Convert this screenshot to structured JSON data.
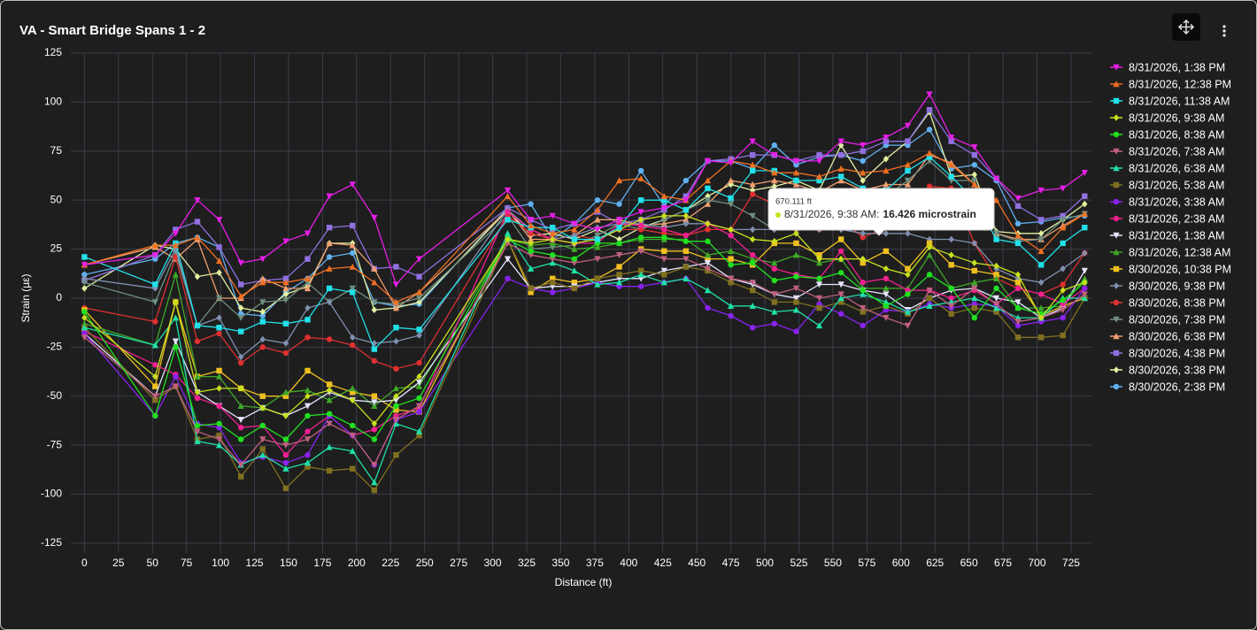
{
  "chart_data": {
    "type": "line",
    "title": "VA - Smart Bridge Spans 1 - 2",
    "xlabel": "Distance (ft)",
    "ylabel": "Strain (µε)",
    "xlim": [
      -10,
      740
    ],
    "ylim": [
      -130,
      125
    ],
    "xticks": [
      0,
      25,
      50,
      75,
      100,
      125,
      150,
      175,
      200,
      225,
      250,
      275,
      300,
      325,
      350,
      375,
      400,
      425,
      450,
      475,
      500,
      525,
      550,
      575,
      600,
      625,
      650,
      675,
      700,
      725
    ],
    "yticks": [
      -125,
      -100,
      -75,
      -50,
      -25,
      0,
      25,
      50,
      75,
      100,
      125
    ],
    "grid": true,
    "legend": "right",
    "x": [
      0,
      52,
      67,
      83,
      99,
      115,
      131,
      148,
      164,
      180,
      197,
      213,
      229,
      246,
      311,
      328,
      344,
      360,
      377,
      393,
      409,
      426,
      442,
      458,
      475,
      491,
      507,
      523,
      540,
      556,
      572,
      589,
      605,
      621,
      637,
      654,
      670.111,
      686,
      703,
      719,
      735
    ],
    "series": [
      {
        "name": "8/31/2026, 1:38 PM",
        "color": "#e81ee8",
        "marker": "triangle-down",
        "values": [
          17,
          22,
          33,
          50,
          40,
          18,
          20,
          29,
          33,
          52,
          58,
          41,
          7,
          20,
          55,
          40,
          42,
          38,
          35,
          40,
          44,
          46,
          50,
          70,
          69,
          80,
          73,
          70,
          70,
          80,
          78,
          82,
          88,
          104,
          82,
          77,
          61,
          51,
          55,
          56,
          64
        ]
      },
      {
        "name": "8/31/2026, 12:38 PM",
        "color": "#f07020",
        "marker": "triangle",
        "values": [
          17,
          27,
          27,
          31,
          19,
          1,
          8,
          8,
          10,
          15,
          16,
          8,
          -2,
          3,
          52,
          37,
          33,
          35,
          45,
          60,
          61,
          52,
          50,
          60,
          70,
          68,
          64,
          64,
          62,
          66,
          64,
          65,
          68,
          74,
          68,
          58,
          50,
          32,
          24,
          36,
          43
        ]
      },
      {
        "name": "8/31/2026, 11:38 AM",
        "color": "#22e0e8",
        "marker": "square",
        "values": [
          21,
          7,
          28,
          -14,
          -15,
          -17,
          -12,
          -13,
          -11,
          5,
          3,
          -26,
          -15,
          -16,
          40,
          36,
          36,
          30,
          30,
          36,
          50,
          50,
          45,
          56,
          51,
          65,
          65,
          60,
          60,
          62,
          56,
          55,
          65,
          72,
          62,
          50,
          30,
          28,
          17,
          28,
          36
        ]
      },
      {
        "name": "8/31/2026, 9:38 AM",
        "color": "#c8e01e",
        "marker": "diamond",
        "values": [
          -10,
          -40,
          -2,
          -48,
          -46,
          -46,
          -56,
          -60,
          -50,
          -47,
          -52,
          -64,
          -50,
          -40,
          30,
          28,
          30,
          28,
          30,
          35,
          40,
          42,
          42,
          38,
          35,
          30,
          29,
          33,
          20,
          20,
          20,
          15,
          12,
          26,
          22,
          18,
          16.426,
          12,
          -10,
          4,
          8
        ]
      },
      {
        "name": "8/31/2026, 8:38 AM",
        "color": "#20e020",
        "marker": "circle",
        "values": [
          -7,
          -60,
          -25,
          -65,
          -64,
          -72,
          -65,
          -72,
          -60,
          -59,
          -65,
          -72,
          -55,
          -51,
          30,
          24,
          22,
          20,
          28,
          28,
          31,
          31,
          29,
          29,
          17,
          18,
          9,
          11,
          10,
          13,
          4,
          -4,
          2,
          12,
          5,
          -10,
          5,
          -5,
          -8,
          -1,
          8
        ]
      },
      {
        "name": "8/31/2026, 7:38 AM",
        "color": "#c06080",
        "marker": "triangle-down",
        "values": [
          -20,
          -50,
          -45,
          -68,
          -72,
          -85,
          -72,
          -75,
          -72,
          -64,
          -70,
          -85,
          -62,
          -55,
          28,
          22,
          20,
          18,
          20,
          22,
          24,
          20,
          20,
          15,
          10,
          8,
          2,
          5,
          0,
          2,
          -5,
          -10,
          -14,
          4,
          -4,
          5,
          -3,
          -12,
          -10,
          -6,
          2
        ]
      },
      {
        "name": "8/31/2026, 6:38 AM",
        "color": "#20e0a8",
        "marker": "triangle",
        "values": [
          -15,
          -24,
          -10,
          -73,
          -75,
          -85,
          -80,
          -87,
          -84,
          -76,
          -78,
          -94,
          -64,
          -68,
          33,
          15,
          18,
          14,
          7,
          8,
          12,
          8,
          10,
          4,
          -4,
          -4,
          -7,
          -6,
          -14,
          0,
          2,
          -2,
          -7,
          -4,
          -2,
          0,
          -5,
          -10,
          -10,
          0,
          0
        ]
      },
      {
        "name": "8/31/2026, 5:38 AM",
        "color": "#807020",
        "marker": "square",
        "values": [
          -15,
          -52,
          -45,
          -72,
          -70,
          -91,
          -77,
          -97,
          -86,
          -88,
          -87,
          -98,
          -80,
          -70,
          30,
          5,
          8,
          5,
          10,
          12,
          14,
          12,
          16,
          14,
          8,
          4,
          -2,
          -2,
          -5,
          -2,
          -7,
          -4,
          -8,
          0,
          -8,
          -5,
          -7,
          -20,
          -20,
          -19,
          0
        ]
      },
      {
        "name": "8/31/2026, 3:38 AM",
        "color": "#8a22f0",
        "marker": "circle",
        "values": [
          -18,
          -60,
          -40,
          -64,
          -66,
          -84,
          -81,
          -84,
          -80,
          -60,
          -70,
          -85,
          -62,
          -58,
          10,
          5,
          3,
          5,
          8,
          6,
          6,
          8,
          10,
          -5,
          -9,
          -15,
          -13,
          -17,
          -3,
          -8,
          -14,
          -6,
          -7,
          -3,
          -5,
          -3,
          -4,
          -14,
          -12,
          -10,
          5
        ]
      },
      {
        "name": "8/31/2026, 2:38 AM",
        "color": "#f02090",
        "marker": "circle",
        "values": [
          -17,
          -34,
          -39,
          -51,
          -55,
          -66,
          -65,
          -80,
          -68,
          -60,
          -70,
          -67,
          -60,
          -56,
          44,
          35,
          30,
          28,
          28,
          38,
          37,
          35,
          32,
          38,
          32,
          22,
          15,
          12,
          10,
          24,
          8,
          10,
          4,
          4,
          0,
          4,
          -3,
          5,
          2,
          -3,
          5
        ]
      },
      {
        "name": "8/31/2026, 1:38 AM",
        "color": "#e4e4ff",
        "marker": "triangle-down",
        "values": [
          -18,
          -50,
          -22,
          -48,
          -55,
          -62,
          -56,
          -60,
          -55,
          -48,
          -52,
          -53,
          -52,
          -43,
          20,
          5,
          6,
          6,
          8,
          10,
          10,
          14,
          16,
          18,
          10,
          7,
          2,
          0,
          7,
          7,
          4,
          2,
          -6,
          0,
          4,
          5,
          0,
          -2,
          -10,
          -5,
          14
        ]
      },
      {
        "name": "8/31/2026, 12:38 AM",
        "color": "#40a828",
        "marker": "triangle",
        "values": [
          -13,
          -24,
          12,
          -40,
          -40,
          -55,
          -56,
          -48,
          -47,
          -52,
          -46,
          -55,
          -46,
          -45,
          30,
          27,
          28,
          25,
          26,
          28,
          30,
          30,
          30,
          22,
          24,
          20,
          18,
          22,
          18,
          20,
          5,
          5,
          5,
          22,
          5,
          8,
          10,
          -5,
          -5,
          -4,
          10
        ]
      },
      {
        "name": "8/30/2026, 10:38 PM",
        "color": "#f0c020",
        "marker": "square",
        "values": [
          -6,
          -45,
          -2,
          -40,
          -37,
          -46,
          -50,
          -50,
          -37,
          -44,
          -48,
          -50,
          -57,
          -58,
          30,
          3,
          10,
          8,
          10,
          16,
          25,
          24,
          24,
          20,
          20,
          17,
          28,
          28,
          22,
          30,
          18,
          24,
          15,
          28,
          17,
          14,
          12,
          8,
          -9,
          -4,
          0
        ]
      },
      {
        "name": "8/30/2026, 9:38 PM",
        "color": "#8090b0",
        "marker": "diamond",
        "values": [
          10,
          5,
          25,
          -14,
          -10,
          -30,
          -21,
          -23,
          -5,
          -2,
          -20,
          -23,
          -22,
          -19,
          45,
          35,
          30,
          32,
          36,
          38,
          38,
          36,
          38,
          38,
          35,
          35,
          35,
          35,
          35,
          35,
          33,
          33,
          33,
          30,
          30,
          28,
          15,
          10,
          8,
          15,
          23
        ]
      },
      {
        "name": "8/30/2026, 8:38 PM",
        "color": "#e03030",
        "marker": "circle",
        "values": [
          -5,
          -12,
          21,
          -22,
          -18,
          -33,
          -25,
          -28,
          -20,
          -21,
          -24,
          -32,
          -36,
          -33,
          42,
          33,
          30,
          32,
          30,
          35,
          35,
          33,
          32,
          35,
          35,
          53,
          48,
          35,
          35,
          40,
          31,
          36,
          38,
          57,
          56,
          28,
          10,
          5,
          2,
          7,
          23
        ]
      },
      {
        "name": "8/30/2026, 7:38 PM",
        "color": "#709080",
        "marker": "triangle-down",
        "values": [
          8,
          -2,
          23,
          -14,
          0,
          -10,
          -2,
          -1,
          8,
          -2,
          5,
          -2,
          -3,
          0,
          42,
          25,
          26,
          27,
          32,
          38,
          35,
          40,
          45,
          50,
          48,
          42,
          35,
          40,
          36,
          38,
          55,
          52,
          60,
          70,
          60,
          60,
          33,
          29,
          30,
          40,
          43
        ]
      },
      {
        "name": "8/30/2026, 6:38 PM",
        "color": "#f0a070",
        "marker": "triangle",
        "values": [
          17,
          26,
          20,
          30,
          0,
          0,
          10,
          5,
          5,
          28,
          27,
          15,
          -5,
          3,
          45,
          30,
          30,
          32,
          40,
          40,
          37,
          38,
          40,
          48,
          60,
          58,
          60,
          58,
          54,
          60,
          55,
          58,
          58,
          73,
          69,
          58,
          33,
          30,
          30,
          37,
          43
        ]
      },
      {
        "name": "8/30/2026, 4:38 PM",
        "color": "#9070e0",
        "marker": "square",
        "values": [
          9,
          22,
          35,
          39,
          26,
          7,
          9,
          10,
          20,
          36,
          37,
          15,
          16,
          11,
          46,
          40,
          35,
          38,
          44,
          38,
          40,
          45,
          52,
          70,
          71,
          73,
          73,
          70,
          73,
          73,
          75,
          80,
          80,
          96,
          80,
          73,
          61,
          47,
          40,
          42,
          52
        ]
      },
      {
        "name": "8/30/2026, 3:38 PM",
        "color": "#e0f0a0",
        "marker": "diamond",
        "values": [
          5,
          27,
          25,
          11,
          13,
          -5,
          -7,
          2,
          6,
          28,
          28,
          -6,
          -5,
          -2,
          45,
          32,
          33,
          30,
          35,
          30,
          36,
          40,
          45,
          52,
          58,
          55,
          57,
          60,
          55,
          78,
          60,
          71,
          80,
          95,
          62,
          63,
          34,
          33,
          33,
          40,
          48
        ]
      },
      {
        "name": "8/30/2026, 2:38 PM",
        "color": "#60b0f0",
        "marker": "circle",
        "values": [
          12,
          20,
          28,
          31,
          26,
          -8,
          -9,
          3,
          10,
          21,
          23,
          -2,
          -4,
          -3,
          46,
          48,
          30,
          38,
          50,
          48,
          65,
          47,
          60,
          70,
          70,
          66,
          78,
          68,
          72,
          73,
          70,
          78,
          78,
          86,
          66,
          68,
          60,
          38,
          39,
          41,
          42
        ]
      }
    ],
    "tooltip": {
      "title": "670.111 ft",
      "series": "8/31/2026, 9:38 AM:",
      "value": "16.426 microstrain"
    }
  }
}
